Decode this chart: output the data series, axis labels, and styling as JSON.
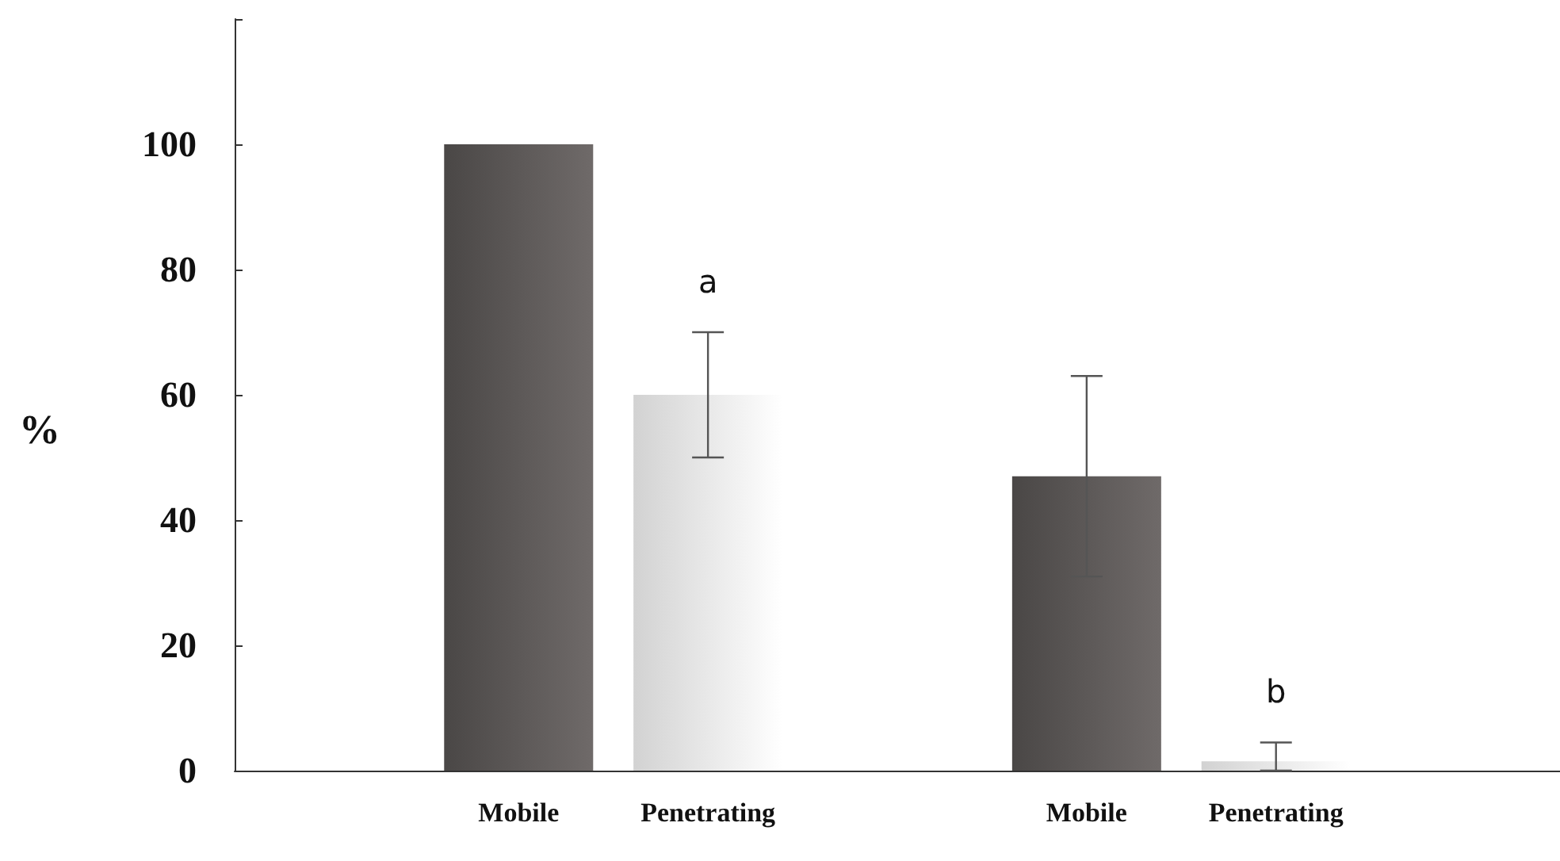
{
  "chart_data": {
    "type": "bar",
    "ylabel": "%",
    "categories": [
      null,
      "Mobile",
      "Penetrating",
      null,
      "Mobile",
      "Penetrating",
      null
    ],
    "values": [
      null,
      100,
      60,
      null,
      47,
      1.5,
      null
    ],
    "colors": [
      "#ffffff",
      "#4a4746",
      "#d2d2d2",
      "#ffffff",
      "#4a4746",
      "#d2d2d2",
      "#ffffff"
    ],
    "errors": [
      null,
      null,
      10,
      null,
      16,
      [
        0,
        4.5
      ],
      null
    ],
    "value_labels": [
      null,
      null,
      "a",
      null,
      null,
      "b",
      null
    ],
    "ylim": [
      0,
      120
    ],
    "yticks": [
      0,
      20,
      40,
      60,
      80,
      100,
      {
        "value": 120,
        "label": null
      }
    ],
    "grid": false
  }
}
